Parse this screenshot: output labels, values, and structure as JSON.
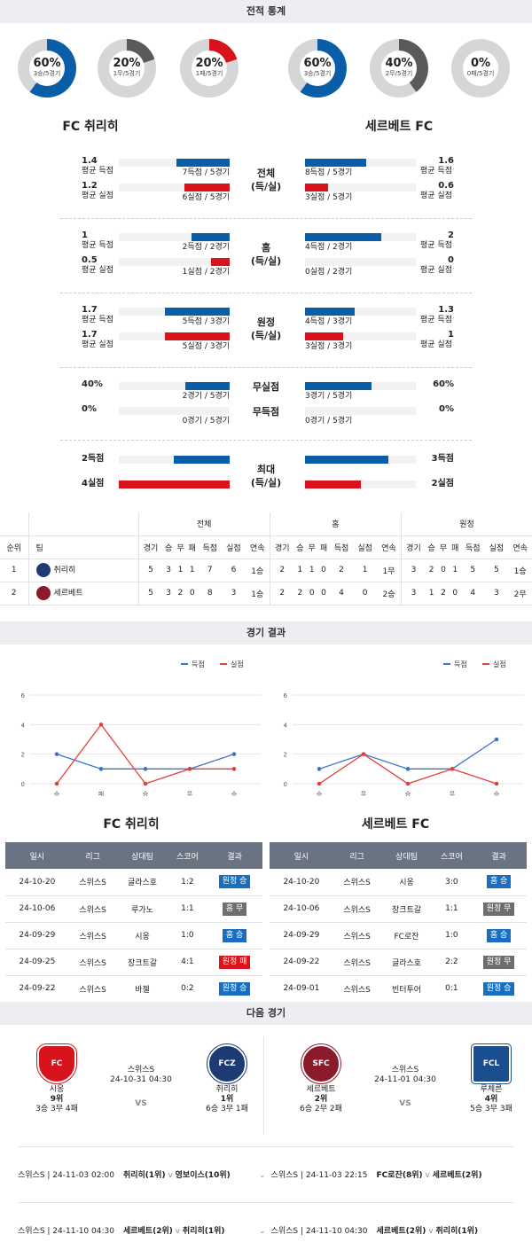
{
  "h2h": {
    "title": "전적 통계",
    "team_left": "FC 취리히",
    "team_right": "세르베트 FC",
    "donuts_left": [
      {
        "pct": "60%",
        "sub": "3승/5경기",
        "value": 0.6,
        "color": "#0a5ea8"
      },
      {
        "pct": "20%",
        "sub": "1무/5경기",
        "value": 0.2,
        "color": "#5a5a5a"
      },
      {
        "pct": "20%",
        "sub": "1패/5경기",
        "value": 0.2,
        "color": "#d8131b"
      }
    ],
    "donuts_right": [
      {
        "pct": "60%",
        "sub": "3승/5경기",
        "value": 0.6,
        "color": "#0a5ea8"
      },
      {
        "pct": "40%",
        "sub": "2무/5경기",
        "value": 0.4,
        "color": "#5a5a5a"
      },
      {
        "pct": "0%",
        "sub": "0패/5경기",
        "value": 0.0,
        "color": "#d8131b"
      }
    ],
    "groups": [
      {
        "center": "전체\n(득/실)",
        "rows": [
          {
            "lv": "1.4",
            "ll": "평균 득점",
            "lc": "7득점 / 5경기",
            "lf": 0.48,
            "rv": "1.6",
            "rl": "평균 득점",
            "rc": "8득점 / 5경기",
            "rf": 0.55,
            "color": "blue"
          },
          {
            "lv": "1.2",
            "ll": "평균 실점",
            "lc": "6실점 / 5경기",
            "lf": 0.41,
            "rv": "0.6",
            "rl": "평균 실점",
            "rc": "3실점 / 5경기",
            "rf": 0.21,
            "color": "red"
          }
        ]
      },
      {
        "center": "홈\n(득/실)",
        "rows": [
          {
            "lv": "1",
            "ll": "평균 득점",
            "lc": "2득점 / 2경기",
            "lf": 0.34,
            "rv": "2",
            "rl": "평균 득점",
            "rc": "4득점 / 2경기",
            "rf": 0.69,
            "color": "blue"
          },
          {
            "lv": "0.5",
            "ll": "평균 실점",
            "lc": "1실점 / 2경기",
            "lf": 0.17,
            "rv": "0",
            "rl": "평균 실점",
            "rc": "0실점 / 2경기",
            "rf": 0,
            "color": "red"
          }
        ]
      },
      {
        "center": "원정\n(득/실)",
        "rows": [
          {
            "lv": "1.7",
            "ll": "평균 득점",
            "lc": "5득점 / 3경기",
            "lf": 0.58,
            "rv": "1.3",
            "rl": "평균 득점",
            "rc": "4득점 / 3경기",
            "rf": 0.45,
            "color": "blue"
          },
          {
            "lv": "1.7",
            "ll": "평균 실점",
            "lc": "5실점 / 3경기",
            "lf": 0.58,
            "rv": "1",
            "rl": "평균 실점",
            "rc": "3실점 / 3경기",
            "rf": 0.34,
            "color": "red"
          }
        ]
      },
      {
        "center": "무실점\n\n무득점",
        "rows": [
          {
            "lv": "40%",
            "ll": "",
            "lc": "2경기 / 5경기",
            "lf": 0.4,
            "rv": "60%",
            "rl": "",
            "rc": "3경기 / 5경기",
            "rf": 0.6,
            "color": "blue"
          },
          {
            "lv": "0%",
            "ll": "",
            "lc": "0경기 / 5경기",
            "lf": 0,
            "rv": "0%",
            "rl": "",
            "rc": "0경기 / 5경기",
            "rf": 0,
            "color": "blue"
          }
        ]
      },
      {
        "center": "최대\n(득/실)",
        "rows": [
          {
            "lv": "2득점",
            "ll": "",
            "lc": "",
            "lf": 0.5,
            "rv": "3득점",
            "rl": "",
            "rc": "",
            "rf": 0.75,
            "color": "blue"
          },
          {
            "lv": "4실점",
            "ll": "",
            "lc": "",
            "lf": 1.0,
            "rv": "2실점",
            "rl": "",
            "rc": "",
            "rf": 0.5,
            "color": "red"
          }
        ]
      }
    ]
  },
  "standings": {
    "groups": [
      "전체",
      "홈",
      "원정"
    ],
    "headers": [
      "순위",
      "팀"
    ],
    "sub_headers": [
      "경기",
      "승",
      "무",
      "패",
      "득점",
      "실점",
      "연속"
    ],
    "rows": [
      {
        "rank": "1",
        "team": "취리히",
        "logo_color": "#1d3b72",
        "all": [
          "5",
          "3",
          "1",
          "1",
          "7",
          "6",
          "1승"
        ],
        "home": [
          "2",
          "1",
          "1",
          "0",
          "2",
          "1",
          "1무"
        ],
        "away": [
          "3",
          "2",
          "0",
          "1",
          "5",
          "5",
          "1승"
        ]
      },
      {
        "rank": "2",
        "team": "세르베트",
        "logo_color": "#8b1a2b",
        "all": [
          "5",
          "3",
          "2",
          "0",
          "8",
          "3",
          "1승"
        ],
        "home": [
          "2",
          "2",
          "0",
          "0",
          "4",
          "0",
          "2승"
        ],
        "away": [
          "3",
          "1",
          "2",
          "0",
          "4",
          "3",
          "2무"
        ]
      }
    ]
  },
  "results": {
    "title": "경기 결과",
    "legend_for": "득점",
    "legend_against": "실점",
    "left": {
      "team": "FC 취리히",
      "chart_data": {
        "type": "line",
        "x": [
          "승",
          "패",
          "승",
          "무",
          "승"
        ],
        "series": [
          {
            "name": "득점",
            "values": [
              2,
              1,
              1,
              1,
              2
            ]
          },
          {
            "name": "실점",
            "values": [
              0,
              4,
              0,
              1,
              1
            ]
          }
        ],
        "ylim": [
          0,
          6
        ],
        "yticks": [
          "0",
          "2",
          "4",
          "6"
        ]
      },
      "headers": [
        "일시",
        "리그",
        "상대팀",
        "스코어",
        "결과"
      ],
      "rows": [
        {
          "date": "24-10-20",
          "league": "스위스S",
          "opp": "글라스호",
          "score": "1:2",
          "res": "원정 승",
          "cls": "bb"
        },
        {
          "date": "24-10-06",
          "league": "스위스S",
          "opp": "루가노",
          "score": "1:1",
          "res": "홈 무",
          "cls": "bg"
        },
        {
          "date": "24-09-29",
          "league": "스위스S",
          "opp": "시옹",
          "score": "1:0",
          "res": "홈 승",
          "cls": "bb"
        },
        {
          "date": "24-09-25",
          "league": "스위스S",
          "opp": "장크트갈",
          "score": "4:1",
          "res": "원정 패",
          "cls": "br"
        },
        {
          "date": "24-09-22",
          "league": "스위스S",
          "opp": "바젤",
          "score": "0:2",
          "res": "원정 승",
          "cls": "bb"
        }
      ]
    },
    "right": {
      "team": "세르베트 FC",
      "chart_data": {
        "type": "line",
        "x": [
          "승",
          "무",
          "승",
          "무",
          "승"
        ],
        "series": [
          {
            "name": "득점",
            "values": [
              1,
              2,
              1,
              1,
              3
            ]
          },
          {
            "name": "실점",
            "values": [
              0,
              2,
              0,
              1,
              0
            ]
          }
        ],
        "ylim": [
          0,
          6
        ],
        "yticks": [
          "0",
          "2",
          "4",
          "6"
        ]
      },
      "headers": [
        "일시",
        "리그",
        "상대팀",
        "스코어",
        "결과"
      ],
      "rows": [
        {
          "date": "24-10-20",
          "league": "스위스S",
          "opp": "시옹",
          "score": "3:0",
          "res": "홈 승",
          "cls": "bb"
        },
        {
          "date": "24-10-06",
          "league": "스위스S",
          "opp": "장크트갈",
          "score": "1:1",
          "res": "원정 무",
          "cls": "bg"
        },
        {
          "date": "24-09-29",
          "league": "스위스S",
          "opp": "FC로잔",
          "score": "1:0",
          "res": "홈 승",
          "cls": "bb"
        },
        {
          "date": "24-09-22",
          "league": "스위스S",
          "opp": "글라스호",
          "score": "2:2",
          "res": "원정 무",
          "cls": "bg"
        },
        {
          "date": "24-09-01",
          "league": "스위스S",
          "opp": "빈터투어",
          "score": "0:1",
          "res": "원정 승",
          "cls": "bb"
        }
      ]
    }
  },
  "next": {
    "title": "다음 경기",
    "vs": "VS",
    "left": {
      "league": "스위스S",
      "datetime": "24-10-31 04:30",
      "home": {
        "name": "시옹",
        "rank": "9위",
        "record": "3승 3무 4패",
        "logo_text": "FC SION",
        "color": "#d8131b"
      },
      "away": {
        "name": "취리히",
        "rank": "1위",
        "record": "6승 3무 1패",
        "logo_text": "FCZ",
        "color": "#1d3b72"
      }
    },
    "right": {
      "league": "스위스S",
      "datetime": "24-11-01 04:30",
      "home": {
        "name": "세르베트",
        "rank": "2위",
        "record": "6승 2무 2패",
        "logo_text": "SFC",
        "color": "#8b1a2b"
      },
      "away": {
        "name": "루체른",
        "rank": "4위",
        "record": "5승 3무 3패",
        "logo_text": "FCL",
        "color": "#1a4f8f"
      }
    },
    "schedule": [
      {
        "left": {
          "info": "스위스S | 24-11-03 02:00",
          "home": "취리히(1위)",
          "away": "영보이스(10위)"
        },
        "right": {
          "info": "스위스S | 24-11-03 22:15",
          "home": "FC로잔(8위)",
          "away": "세르베트(2위)"
        }
      },
      {
        "left": {
          "info": "스위스S | 24-11-10 04:30",
          "home": "세르베트(2위)",
          "away": "취리히(1위)"
        },
        "right": {
          "info": "스위스S | 24-11-10 04:30",
          "home": "세르베트(2위)",
          "away": "취리히(1위)"
        }
      }
    ]
  }
}
